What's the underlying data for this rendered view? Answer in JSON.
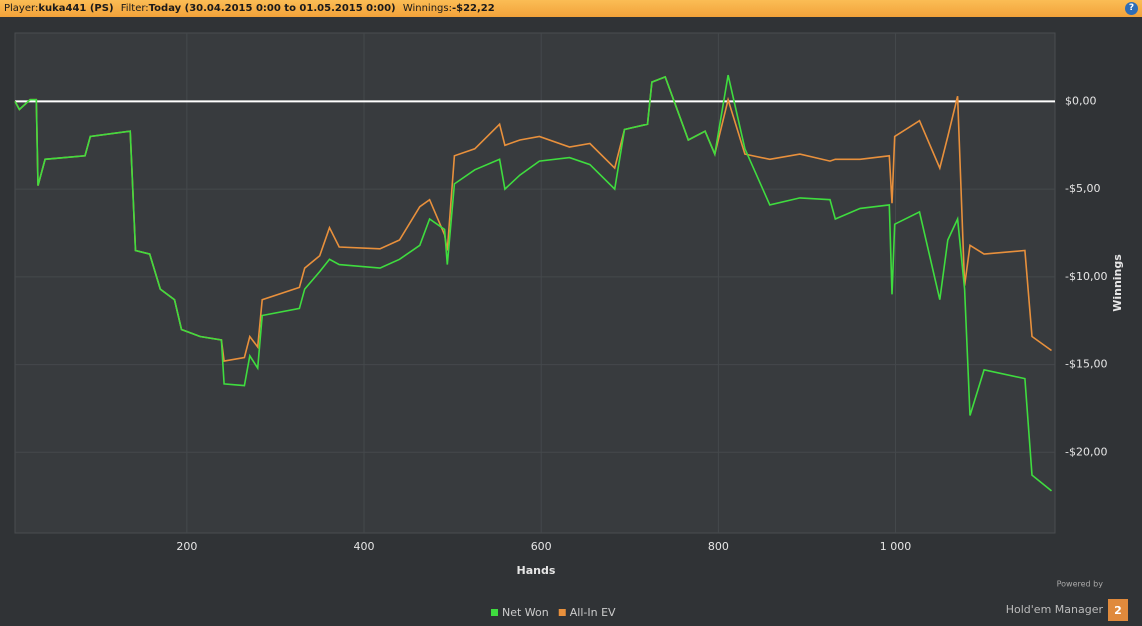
{
  "header": {
    "player_label": "Player:",
    "player": "kuka441 (PS)",
    "filter_label": "Filter:",
    "filter": "Today (30.04.2015 0:00 to 01.05.2015 0:00)",
    "winnings_label": "Winnings:",
    "winnings": "-$22,22",
    "help": "?"
  },
  "footer": {
    "powered": "Powered by",
    "brand": "Hold'em Manager",
    "version": "2"
  },
  "chart_data": {
    "type": "line",
    "x_label": "Hands",
    "y_label": "Winnings",
    "grid": true,
    "legend": "bottom",
    "reference_line": 0,
    "xlim": [
      6,
      1180
    ],
    "xticks": [
      200,
      400,
      600,
      800,
      {
        "value": 1000,
        "label": "1 000"
      }
    ],
    "ylim": [
      -24.6,
      3.9
    ],
    "yticks": [
      {
        "value": 0,
        "label": "$0,00"
      },
      {
        "value": -5,
        "label": "-$5,00"
      },
      {
        "value": -10,
        "label": "-$10,00"
      },
      {
        "value": -15,
        "label": "-$15,00"
      },
      {
        "value": -20,
        "label": "-$20,00"
      }
    ],
    "x": [
      6,
      11,
      23,
      30,
      32,
      40,
      85,
      91,
      136,
      142,
      158,
      170,
      186,
      194,
      215,
      239,
      242,
      265,
      271,
      280,
      285,
      327,
      333,
      350,
      361,
      372,
      418,
      440,
      463,
      474,
      491,
      494,
      502,
      525,
      553,
      559,
      576,
      598,
      632,
      655,
      683,
      694,
      720,
      725,
      740,
      766,
      785,
      796,
      811,
      830,
      858,
      892,
      926,
      932,
      960,
      993,
      996,
      999,
      1027,
      1050,
      1059,
      1070,
      1078,
      1084,
      1100,
      1146,
      1154,
      1176
    ],
    "series": [
      {
        "name": "Net Won",
        "color": "#3fdc3f",
        "values": [
          0,
          -0.46,
          0.1,
          0.1,
          -4.8,
          -3.3,
          -3.1,
          -2.0,
          -1.7,
          -8.5,
          -8.7,
          -10.7,
          -11.3,
          -13.0,
          -13.4,
          -13.6,
          -16.1,
          -16.2,
          -14.5,
          -15.2,
          -12.2,
          -11.8,
          -10.7,
          -9.7,
          -9.0,
          -9.3,
          -9.5,
          -9.0,
          -8.2,
          -6.7,
          -7.3,
          -9.3,
          -4.7,
          -3.9,
          -3.3,
          -5.0,
          -4.2,
          -3.4,
          -3.2,
          -3.6,
          -5.0,
          -1.6,
          -1.3,
          1.1,
          1.4,
          -2.2,
          -1.7,
          -3.0,
          1.5,
          -2.7,
          -5.9,
          -5.5,
          -5.6,
          -6.7,
          -6.1,
          -5.9,
          -11.0,
          -7.0,
          -6.3,
          -11.3,
          -7.9,
          -6.7,
          -10.7,
          -17.9,
          -15.3,
          -15.8,
          -21.3,
          -22.2
        ]
      },
      {
        "name": "All-In EV",
        "color": "#e8903c",
        "values": [
          0,
          -0.46,
          0.1,
          0.1,
          -4.8,
          -3.3,
          -3.1,
          -2.0,
          -1.7,
          -8.5,
          -8.7,
          -10.7,
          -11.3,
          -13.0,
          -13.4,
          -13.6,
          -14.8,
          -14.6,
          -13.4,
          -14.0,
          -11.3,
          -10.6,
          -9.5,
          -8.8,
          -7.2,
          -8.3,
          -8.4,
          -7.9,
          -6.0,
          -5.6,
          -7.6,
          -8.5,
          -3.1,
          -2.7,
          -1.3,
          -2.5,
          -2.2,
          -2.0,
          -2.6,
          -2.4,
          -3.8,
          -1.6,
          -1.3,
          1.1,
          1.4,
          -2.2,
          -1.7,
          -3.0,
          0.1,
          -3.0,
          -3.3,
          -3.0,
          -3.4,
          -3.3,
          -3.3,
          -3.1,
          -5.8,
          -2.0,
          -1.1,
          -3.8,
          -2.0,
          0.3,
          -10.5,
          -8.2,
          -8.7,
          -8.5,
          -13.4,
          -14.2
        ]
      }
    ]
  }
}
